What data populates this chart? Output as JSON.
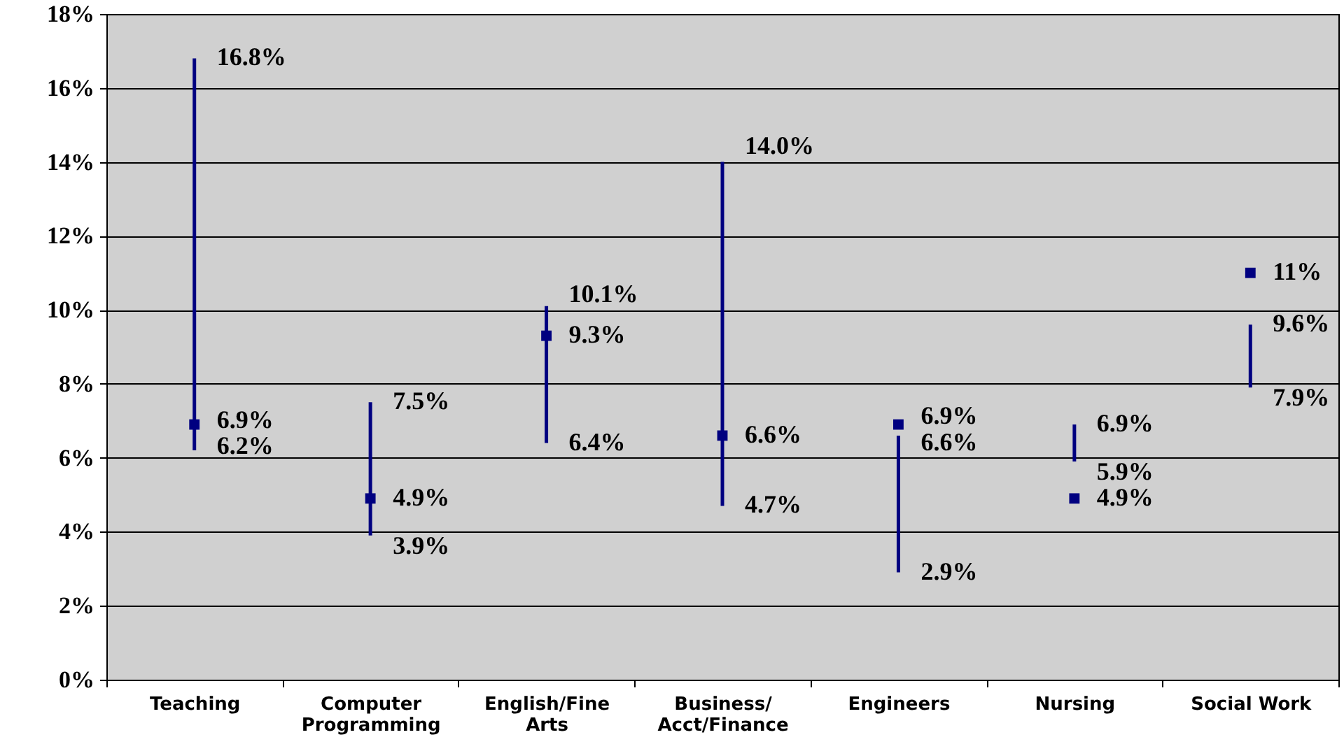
{
  "chart_data": {
    "type": "scatter",
    "categories": [
      "Teaching",
      "Computer\nProgramming",
      "English/Fine\nArts",
      "Business/\nAcct/Finance",
      "Engineers",
      "Nursing",
      "Social Work"
    ],
    "series": [
      {
        "color": "#000080",
        "values": [
          6.9,
          4.9,
          9.3,
          6.6,
          6.9,
          4.9,
          11
        ],
        "errors": [
          [
            6.2,
            16.8
          ],
          [
            3.9,
            7.5
          ],
          [
            6.4,
            10.1
          ],
          [
            4.7,
            14.0
          ],
          [
            2.9,
            6.6
          ],
          [
            5.9,
            6.9
          ],
          [
            7.9,
            9.6
          ]
        ]
      }
    ],
    "ylim": [
      0,
      18
    ],
    "yticks": [
      {
        "value": 0,
        "label": "0%"
      },
      {
        "value": 2,
        "label": "2%"
      },
      {
        "value": 4,
        "label": "4%"
      },
      {
        "value": 6,
        "label": "6%"
      },
      {
        "value": 8,
        "label": "8%"
      },
      {
        "value": 10,
        "label": "10%"
      },
      {
        "value": 12,
        "label": "12%"
      },
      {
        "value": 14,
        "label": "14%"
      },
      {
        "value": 16,
        "label": "16%"
      },
      {
        "value": 18,
        "label": "18%"
      }
    ],
    "grid": "y",
    "marker": "square",
    "annotations": [
      {
        "text": "16.8%",
        "x": "Teaching",
        "y": 16.8
      },
      {
        "text": "6.9%",
        "x": "Teaching",
        "y": 6.9
      },
      {
        "text": "6.2%",
        "x": "Teaching",
        "y": 6.2
      },
      {
        "text": "7.5%",
        "x": "Computer\nProgramming",
        "y": 7.5
      },
      {
        "text": "4.9%",
        "x": "Computer\nProgramming",
        "y": 4.9
      },
      {
        "text": "3.9%",
        "x": "Computer\nProgramming",
        "y": 3.9
      },
      {
        "text": "10.1%",
        "x": "English/Fine\nArts",
        "y": 10.1
      },
      {
        "text": "9.3%",
        "x": "English/Fine\nArts",
        "y": 9.3
      },
      {
        "text": "6.4%",
        "x": "English/Fine\nArts",
        "y": 6.4
      },
      {
        "text": "14.0%",
        "x": "Business/\nAcct/Finance",
        "y": 14.0
      },
      {
        "text": "6.6%",
        "x": "Business/\nAcct/Finance",
        "y": 6.6
      },
      {
        "text": "4.7%",
        "x": "Business/\nAcct/Finance",
        "y": 4.7
      },
      {
        "text": "6.9%",
        "x": "Engineers",
        "y": 6.9
      },
      {
        "text": "6.6%",
        "x": "Engineers",
        "y": 6.6
      },
      {
        "text": "2.9%",
        "x": "Engineers",
        "y": 2.9
      },
      {
        "text": "6.9%",
        "x": "Nursing",
        "y": 6.9
      },
      {
        "text": "5.9%",
        "x": "Nursing",
        "y": 5.9
      },
      {
        "text": "4.9%",
        "x": "Nursing",
        "y": 4.9
      },
      {
        "text": "11%",
        "x": "Social Work",
        "y": 11
      },
      {
        "text": "9.6%",
        "x": "Social Work",
        "y": 9.6
      },
      {
        "text": "7.9%",
        "x": "Social Work",
        "y": 7.9
      }
    ]
  }
}
